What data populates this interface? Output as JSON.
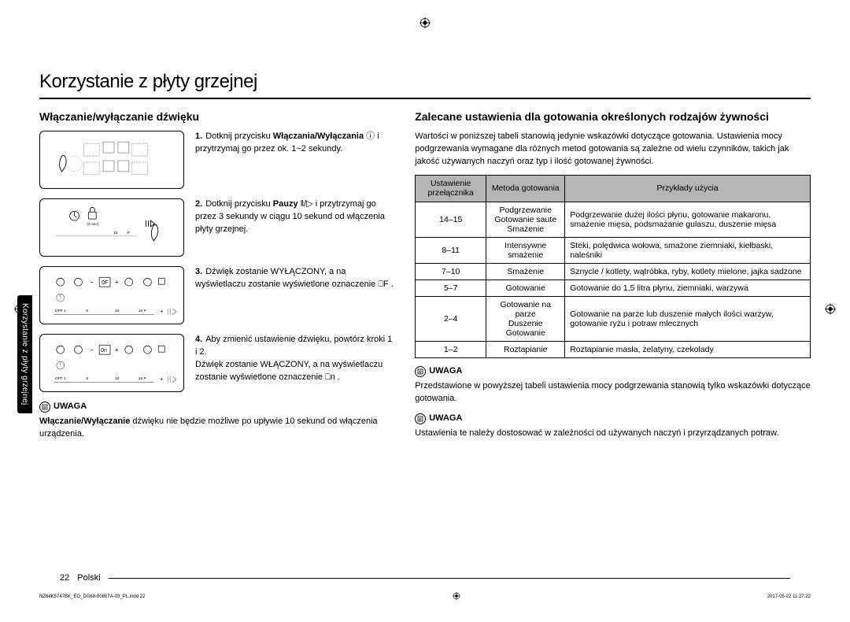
{
  "page": {
    "title": "Korzystanie z płyty grzejnej",
    "sideTab": "Korzystanie z płyty grzejnej",
    "footerPage": "22",
    "footerLang": "Polski",
    "tinyFooterLeft": "NZ64K5747BK_EO_DG68-00807A-03_PL.indd   22",
    "tinyFooterRight": "2017-05-22   11:27:22"
  },
  "left": {
    "heading": "Włączanie/wyłączanie dźwięku",
    "steps": [
      {
        "num": "1.",
        "html": "Dotknij przycisku <b>Włączania/Wyłączania</b> ⓘ i przytrzymaj go przez ok. 1~2 sekundy."
      },
      {
        "num": "2.",
        "html": "Dotknij przycisku <b>Pauzy</b> ‖/▷ i przytrzymaj go przez 3 sekundy w ciągu 10 sekund od włączenia płyty grzejnej."
      },
      {
        "num": "3.",
        "html": "Dźwięk zostanie WYŁĄCZONY, a na wyświetlaczu zostanie wyświetlone oznaczenie ⎕F ."
      },
      {
        "num": "4.",
        "html": "Aby zmienić ustawienie dźwięku, powtórz kroki 1 i 2.<br>Dźwięk zostanie WŁĄCZONY, a na wyświetlaczu zostanie wyświetlone oznaczenie ⎕n ."
      }
    ],
    "noteLabel": "UWAGA",
    "noteText": "<b>Włączanie/Wyłączanie</b> dźwięku nie będzie możliwe po upływie 10 sekund od włączenia urządzenia."
  },
  "right": {
    "heading": "Zalecane ustawienia dla gotowania określonych rodzajów żywności",
    "intro": "Wartości w poniższej tabeli stanowią jedynie wskazówki dotyczące gotowania. Ustawienia mocy podgrzewania wymagane dla różnych metod gotowania są zależne od wielu czynników, takich jak jakość używanych naczyń oraz typ i ilość gotowanej żywności.",
    "table": {
      "headers": [
        "Ustawienie przełącznika",
        "Metoda gotowania",
        "Przykłady użycia"
      ],
      "rows": [
        {
          "setting": "14–15",
          "method": "Podgrzewanie\nGotowanie saute\nSmażenie",
          "examples": "Podgrzewanie dużej ilości płynu, gotowanie makaronu, smażenie mięsa, podsmażanie gulaszu, duszenie mięsa"
        },
        {
          "setting": "8–11",
          "method": "Intensywne smażenie",
          "examples": "Steki, polędwica wołowa, smażone ziemniaki, kiełbaski, naleśniki"
        },
        {
          "setting": "7–10",
          "method": "Smażenie",
          "examples": "Sznycle / kotlety, wątróbka, ryby, kotlety mielone, jajka sadzone"
        },
        {
          "setting": "5–7",
          "method": "Gotowanie",
          "examples": "Gotowanie do 1,5 litra płynu, ziemniaki, warzywa"
        },
        {
          "setting": "2–4",
          "method": "Gotowanie na parze\nDuszenie\nGotowanie",
          "examples": "Gotowanie na parze lub duszenie małych ilości warzyw, gotowanie ryżu i potraw mlecznych"
        },
        {
          "setting": "1–2",
          "method": "Roztapianie",
          "examples": "Roztapianie masła, żelatyny, czekolady"
        }
      ]
    },
    "note1Label": "UWAGA",
    "note1Text": "Przedstawione w powyższej tabeli ustawienia mocy podgrzewania stanowią tylko wskazówki dotyczące gotowania.",
    "note2Label": "UWAGA",
    "note2Text": "Ustawienia te należy dostosować w zależności od używanych naczyń i przyrządzanych potraw."
  }
}
